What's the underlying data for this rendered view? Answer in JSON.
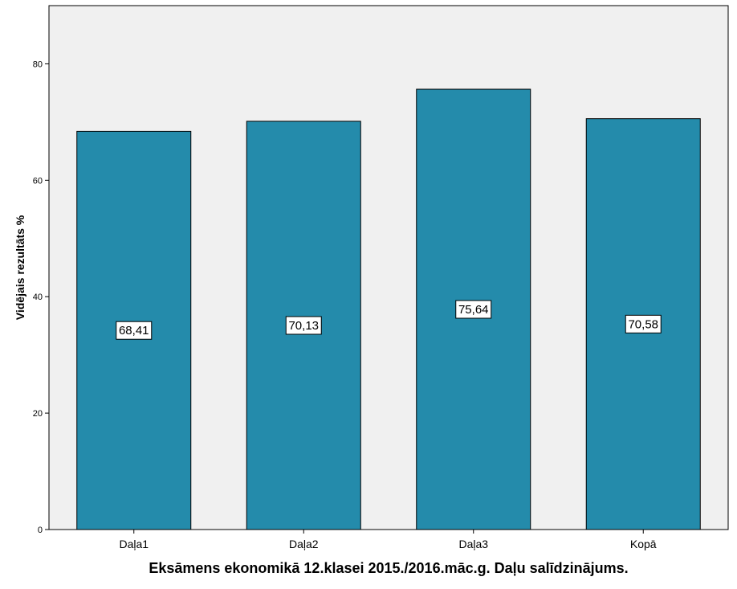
{
  "chart_data": {
    "type": "bar",
    "categories": [
      "Daļa1",
      "Daļa2",
      "Daļa3",
      "Kopā"
    ],
    "values": [
      68.41,
      70.13,
      75.64,
      70.58
    ],
    "data_labels": [
      "68,41",
      "70,13",
      "75,64",
      "70,58"
    ],
    "title": "",
    "xlabel": "Eksāmens ekonomikā 12.klasei 2015./2016.māc.g. Daļu salīdzinājums.",
    "ylabel": "Vidējais rezultāts %",
    "ylim": [
      0,
      90
    ],
    "yticks": [
      0,
      20,
      40,
      60,
      80
    ],
    "grid": false,
    "legend": "none",
    "colors": {
      "bar": "#248bab",
      "plot_background": "#f0f0f0",
      "axis": "#000000"
    }
  }
}
